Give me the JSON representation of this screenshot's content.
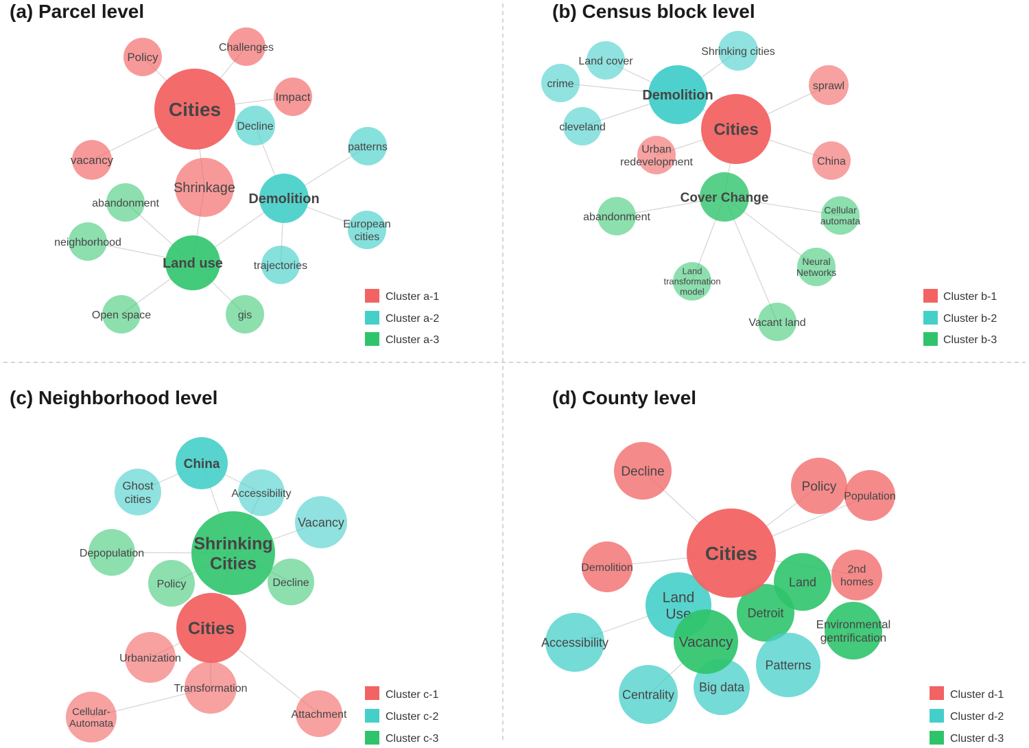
{
  "colors": {
    "red": "#f26363",
    "teal": "#45cfc9",
    "green": "#2fc46b"
  },
  "panels": [
    {
      "title": "(a) Parcel level",
      "legend": [
        {
          "label": "Cluster a-1",
          "color": "red"
        },
        {
          "label": "Cluster a-2",
          "color": "teal"
        },
        {
          "label": "Cluster a-3",
          "color": "green"
        }
      ]
    },
    {
      "title": "(b) Census block level",
      "legend": [
        {
          "label": "Cluster b-1",
          "color": "red"
        },
        {
          "label": "Cluster b-2",
          "color": "teal"
        },
        {
          "label": "Cluster b-3",
          "color": "green"
        }
      ]
    },
    {
      "title": "(c) Neighborhood level",
      "legend": [
        {
          "label": "Cluster c-1",
          "color": "red"
        },
        {
          "label": "Cluster c-2",
          "color": "teal"
        },
        {
          "label": "Cluster c-3",
          "color": "green"
        }
      ]
    },
    {
      "title": "(d) County level",
      "legend": [
        {
          "label": "Cluster d-1",
          "color": "red"
        },
        {
          "label": "Cluster d-2",
          "color": "teal"
        },
        {
          "label": "Cluster d-3",
          "color": "green"
        }
      ]
    }
  ],
  "graphs": [
    {
      "nodes": [
        {
          "id": "a-cities",
          "lines": [
            "Cities"
          ],
          "cluster": "red",
          "weight": "hub"
        },
        {
          "id": "a-policy",
          "lines": [
            "Policy"
          ],
          "cluster": "red",
          "weight": "leaf"
        },
        {
          "id": "a-challenges",
          "lines": [
            "Challenges"
          ],
          "cluster": "red",
          "weight": "leaf"
        },
        {
          "id": "a-impact",
          "lines": [
            "Impact"
          ],
          "cluster": "red",
          "weight": "leaf"
        },
        {
          "id": "a-vacancy",
          "lines": [
            "vacancy"
          ],
          "cluster": "red",
          "weight": "leaf"
        },
        {
          "id": "a-shrinkage",
          "lines": [
            "Shrinkage"
          ],
          "cluster": "red",
          "weight": "major"
        },
        {
          "id": "a-decline",
          "lines": [
            "Decline"
          ],
          "cluster": "teal",
          "weight": "leaf"
        },
        {
          "id": "a-patterns",
          "lines": [
            "patterns"
          ],
          "cluster": "teal",
          "weight": "leaf"
        },
        {
          "id": "a-demolition",
          "lines": [
            "Demolition"
          ],
          "cluster": "teal",
          "weight": "hub"
        },
        {
          "id": "a-european",
          "lines": [
            "European",
            "cities"
          ],
          "cluster": "teal",
          "weight": "leaf"
        },
        {
          "id": "a-trajectories",
          "lines": [
            "trajectories"
          ],
          "cluster": "teal",
          "weight": "leaf"
        },
        {
          "id": "a-abandonment",
          "lines": [
            "abandonment"
          ],
          "cluster": "green",
          "weight": "leaf"
        },
        {
          "id": "a-neighborhood",
          "lines": [
            "neighborhood"
          ],
          "cluster": "green",
          "weight": "leaf"
        },
        {
          "id": "a-landuse",
          "lines": [
            "Land use"
          ],
          "cluster": "green",
          "weight": "hub"
        },
        {
          "id": "a-openspace",
          "lines": [
            "Open space"
          ],
          "cluster": "green",
          "weight": "leaf"
        },
        {
          "id": "a-gis",
          "lines": [
            "gis"
          ],
          "cluster": "green",
          "weight": "leaf"
        }
      ],
      "edges": [
        [
          "a-cities",
          "a-policy"
        ],
        [
          "a-cities",
          "a-challenges"
        ],
        [
          "a-cities",
          "a-impact"
        ],
        [
          "a-cities",
          "a-vacancy"
        ],
        [
          "a-cities",
          "a-shrinkage"
        ],
        [
          "a-cities",
          "a-decline"
        ],
        [
          "a-decline",
          "a-demolition"
        ],
        [
          "a-demolition",
          "a-patterns"
        ],
        [
          "a-demolition",
          "a-european"
        ],
        [
          "a-demolition",
          "a-trajectories"
        ],
        [
          "a-shrinkage",
          "a-landuse"
        ],
        [
          "a-landuse",
          "a-abandonment"
        ],
        [
          "a-landuse",
          "a-neighborhood"
        ],
        [
          "a-landuse",
          "a-openspace"
        ],
        [
          "a-landuse",
          "a-gis"
        ],
        [
          "a-landuse",
          "a-demolition"
        ]
      ]
    },
    {
      "nodes": [
        {
          "id": "b-landcover",
          "lines": [
            "Land cover"
          ],
          "cluster": "teal",
          "weight": "leaf"
        },
        {
          "id": "b-shrinking",
          "lines": [
            "Shrinking cities"
          ],
          "cluster": "teal",
          "weight": "leaf"
        },
        {
          "id": "b-crime",
          "lines": [
            "crime"
          ],
          "cluster": "teal",
          "weight": "leaf"
        },
        {
          "id": "b-demolition",
          "lines": [
            "Demolition"
          ],
          "cluster": "teal",
          "weight": "hub"
        },
        {
          "id": "b-cleveland",
          "lines": [
            "cleveland"
          ],
          "cluster": "teal",
          "weight": "leaf"
        },
        {
          "id": "b-sprawl",
          "lines": [
            "sprawl"
          ],
          "cluster": "red",
          "weight": "leaf"
        },
        {
          "id": "b-cities",
          "lines": [
            "Cities"
          ],
          "cluster": "red",
          "weight": "hub"
        },
        {
          "id": "b-china",
          "lines": [
            "China"
          ],
          "cluster": "red",
          "weight": "leaf"
        },
        {
          "id": "b-urban",
          "lines": [
            "Urban",
            "redevelopment"
          ],
          "cluster": "red",
          "weight": "leaf"
        },
        {
          "id": "b-cover",
          "lines": [
            "Cover Change"
          ],
          "cluster": "green",
          "weight": "hub"
        },
        {
          "id": "b-abandonment",
          "lines": [
            "abandonment"
          ],
          "cluster": "green",
          "weight": "leaf"
        },
        {
          "id": "b-cellular",
          "lines": [
            "Cellular",
            "automata"
          ],
          "cluster": "green",
          "weight": "leaf"
        },
        {
          "id": "b-neural",
          "lines": [
            "Neural",
            "Networks"
          ],
          "cluster": "green",
          "weight": "leaf"
        },
        {
          "id": "b-ltm",
          "lines": [
            "Land",
            "transformation",
            "model"
          ],
          "cluster": "green",
          "weight": "leaf"
        },
        {
          "id": "b-vacant",
          "lines": [
            "Vacant land"
          ],
          "cluster": "green",
          "weight": "leaf"
        }
      ],
      "edges": [
        [
          "b-demolition",
          "b-landcover"
        ],
        [
          "b-demolition",
          "b-shrinking"
        ],
        [
          "b-demolition",
          "b-crime"
        ],
        [
          "b-demolition",
          "b-cleveland"
        ],
        [
          "b-demolition",
          "b-cities"
        ],
        [
          "b-cities",
          "b-sprawl"
        ],
        [
          "b-cities",
          "b-china"
        ],
        [
          "b-cities",
          "b-urban"
        ],
        [
          "b-cities",
          "b-cover"
        ],
        [
          "b-cover",
          "b-abandonment"
        ],
        [
          "b-cover",
          "b-cellular"
        ],
        [
          "b-cover",
          "b-neural"
        ],
        [
          "b-cover",
          "b-ltm"
        ],
        [
          "b-cover",
          "b-vacant"
        ]
      ]
    },
    {
      "nodes": [
        {
          "id": "c-china",
          "lines": [
            "China"
          ],
          "cluster": "teal",
          "weight": "hub"
        },
        {
          "id": "c-ghost",
          "lines": [
            "Ghost",
            "cities"
          ],
          "cluster": "teal",
          "weight": "leaf"
        },
        {
          "id": "c-access",
          "lines": [
            "Accessibility"
          ],
          "cluster": "teal",
          "weight": "leaf"
        },
        {
          "id": "c-vacancy",
          "lines": [
            "Vacancy"
          ],
          "cluster": "teal",
          "weight": "leaf"
        },
        {
          "id": "c-depop",
          "lines": [
            "Depopulation"
          ],
          "cluster": "green",
          "weight": "leaf"
        },
        {
          "id": "c-shrinking",
          "lines": [
            "Shrinking",
            "Cities"
          ],
          "cluster": "green",
          "weight": "hub"
        },
        {
          "id": "c-policy",
          "lines": [
            "Policy"
          ],
          "cluster": "green",
          "weight": "leaf"
        },
        {
          "id": "c-decline",
          "lines": [
            "Decline"
          ],
          "cluster": "green",
          "weight": "leaf"
        },
        {
          "id": "c-cities",
          "lines": [
            "Cities"
          ],
          "cluster": "red",
          "weight": "hub"
        },
        {
          "id": "c-urbanization",
          "lines": [
            "Urbanization"
          ],
          "cluster": "red",
          "weight": "leaf"
        },
        {
          "id": "c-transformation",
          "lines": [
            "Transformation"
          ],
          "cluster": "red",
          "weight": "leaf"
        },
        {
          "id": "c-cellular",
          "lines": [
            "Cellular-",
            "Automata"
          ],
          "cluster": "red",
          "weight": "leaf"
        },
        {
          "id": "c-attachment",
          "lines": [
            "Attachment"
          ],
          "cluster": "red",
          "weight": "leaf"
        }
      ],
      "edges": [
        [
          "c-china",
          "c-ghost"
        ],
        [
          "c-china",
          "c-access"
        ],
        [
          "c-china",
          "c-shrinking"
        ],
        [
          "c-shrinking",
          "c-access"
        ],
        [
          "c-shrinking",
          "c-vacancy"
        ],
        [
          "c-shrinking",
          "c-depop"
        ],
        [
          "c-shrinking",
          "c-policy"
        ],
        [
          "c-shrinking",
          "c-decline"
        ],
        [
          "c-shrinking",
          "c-cities"
        ],
        [
          "c-cities",
          "c-urbanization"
        ],
        [
          "c-cities",
          "c-transformation"
        ],
        [
          "c-cities",
          "c-attachment"
        ],
        [
          "c-transformation",
          "c-cellular"
        ]
      ]
    },
    {
      "nodes": [
        {
          "id": "d-decline",
          "lines": [
            "Decline"
          ],
          "cluster": "red",
          "weight": "leaf"
        },
        {
          "id": "d-policy",
          "lines": [
            "Policy"
          ],
          "cluster": "red",
          "weight": "leaf"
        },
        {
          "id": "d-population",
          "lines": [
            "Population"
          ],
          "cluster": "red",
          "weight": "leaf"
        },
        {
          "id": "d-demolition",
          "lines": [
            "Demolition"
          ],
          "cluster": "red",
          "weight": "leaf"
        },
        {
          "id": "d-cities",
          "lines": [
            "Cities"
          ],
          "cluster": "red",
          "weight": "hub"
        },
        {
          "id": "d-2nd",
          "lines": [
            "2nd",
            "homes"
          ],
          "cluster": "red",
          "weight": "leaf"
        },
        {
          "id": "d-land",
          "lines": [
            "Land"
          ],
          "cluster": "green",
          "weight": "leaf"
        },
        {
          "id": "d-detroit",
          "lines": [
            "Detroit"
          ],
          "cluster": "green",
          "weight": "leaf"
        },
        {
          "id": "d-envgent",
          "lines": [
            "Environmental",
            "gentrification"
          ],
          "cluster": "green",
          "weight": "leaf"
        },
        {
          "id": "d-accessibility",
          "lines": [
            "Accessibility"
          ],
          "cluster": "teal",
          "weight": "leaf"
        },
        {
          "id": "d-landuse",
          "lines": [
            "Land",
            "Use"
          ],
          "cluster": "teal",
          "weight": "major"
        },
        {
          "id": "d-vacancy",
          "lines": [
            "Vacancy"
          ],
          "cluster": "green",
          "weight": "major"
        },
        {
          "id": "d-patterns",
          "lines": [
            "Patterns"
          ],
          "cluster": "teal",
          "weight": "leaf"
        },
        {
          "id": "d-centrality",
          "lines": [
            "Centrality"
          ],
          "cluster": "teal",
          "weight": "leaf"
        },
        {
          "id": "d-bigdata",
          "lines": [
            "Big data"
          ],
          "cluster": "teal",
          "weight": "leaf"
        }
      ],
      "edges": [
        [
          "d-cities",
          "d-decline"
        ],
        [
          "d-cities",
          "d-policy"
        ],
        [
          "d-cities",
          "d-population"
        ],
        [
          "d-cities",
          "d-demolition"
        ],
        [
          "d-cities",
          "d-2nd"
        ],
        [
          "d-cities",
          "d-landuse"
        ],
        [
          "d-cities",
          "d-land"
        ],
        [
          "d-landuse",
          "d-accessibility"
        ],
        [
          "d-vacancy",
          "d-centrality"
        ]
      ]
    }
  ]
}
